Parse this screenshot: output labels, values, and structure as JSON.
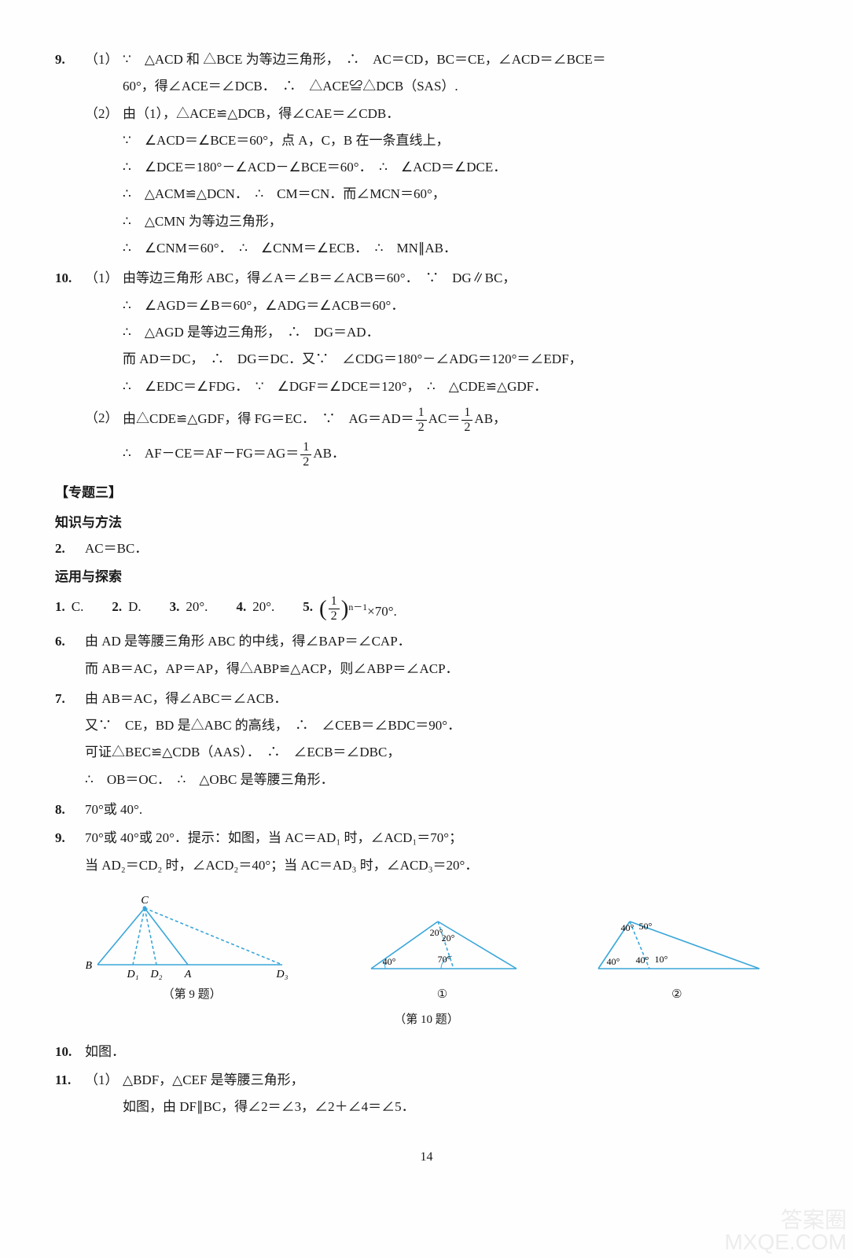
{
  "q9": {
    "num": "9.",
    "p1": {
      "label": "（1）",
      "l1": "∵　△ACD 和 △BCE 为等边三角形，　∴　AC＝CD，BC＝CE，∠ACD＝∠BCE＝",
      "l2": "60°，得∠ACE＝∠DCB．　∴　△ACE≌△DCB（SAS）."
    },
    "p2": {
      "label": "（2）",
      "l1": "由（1），△ACE≌△DCB，得∠CAE＝∠CDB．",
      "l2": "∵　∠ACD＝∠BCE＝60°，点 A，C，B 在一条直线上，",
      "l3": "∴　∠DCE＝180°－∠ACD－∠BCE＝60°．　∴　∠ACD＝∠DCE．",
      "l4": "∴　△ACM≌△DCN．　∴　CM＝CN．而∠MCN＝60°，",
      "l5": "∴　△CMN 为等边三角形，",
      "l6": "∴　∠CNM＝60°．　∴　∠CNM＝∠ECB．　∴　MN∥AB．"
    }
  },
  "q10": {
    "num": "10.",
    "p1": {
      "label": "（1）",
      "l1": "由等边三角形 ABC，得∠A＝∠B＝∠ACB＝60°．　∵　DG∥BC，",
      "l2": "∴　∠AGD＝∠B＝60°，∠ADG＝∠ACB＝60°．",
      "l3": "∴　△AGD 是等边三角形，　∴　DG＝AD．",
      "l4": "而 AD＝DC，　∴　DG＝DC．又∵　∠CDG＝180°－∠ADG＝120°＝∠EDF，",
      "l5": "∴　∠EDC＝∠FDG．　∵　∠DGF＝∠DCE＝120°，　∴　△CDE≌△GDF．"
    },
    "p2": {
      "label": "（2）",
      "l1_a": "由△CDE≌△GDF，得 FG＝EC．　∵　AG＝AD＝",
      "l1_b": "AC＝",
      "l1_c": "AB，",
      "l2_a": "∴　AF－CE＝AF－FG＝AG＝",
      "l2_b": "AB．"
    }
  },
  "sec3_title": "【专题三】",
  "kf_title": "知识与方法",
  "kf2": {
    "num": "2.",
    "text": "AC＝BC．"
  },
  "yy_title": "运用与探索",
  "ans": {
    "a1": {
      "n": "1.",
      "t": "C."
    },
    "a2": {
      "n": "2.",
      "t": "D."
    },
    "a3": {
      "n": "3.",
      "t": "20°."
    },
    "a4": {
      "n": "4.",
      "t": "20°."
    },
    "a5": {
      "n": "5.",
      "tail": "×70°."
    }
  },
  "q6": {
    "num": "6.",
    "l1": "由 AD 是等腰三角形 ABC 的中线，得∠BAP＝∠CAP．",
    "l2": "而 AB＝AC，AP＝AP，得△ABP≌△ACP，则∠ABP＝∠ACP．"
  },
  "q7": {
    "num": "7.",
    "l1": "由 AB＝AC，得∠ABC＝∠ACB．",
    "l2": "又∵　CE，BD 是△ABC 的高线，　∴　∠CEB＝∠BDC＝90°．",
    "l3": "可证△BEC≌△CDB（AAS）．　∴　∠ECB＝∠DBC，",
    "l4": "∴　OB＝OC．　∴　△OBC 是等腰三角形．"
  },
  "q8": {
    "num": "8.",
    "text": "70°或 40°."
  },
  "q9b": {
    "num": "9.",
    "l1": "70°或 40°或 20°．提示：如图，当 AC＝AD₁ 时，∠ACD₁＝70°；",
    "l2": "当 AD₂＝CD₂ 时，∠ACD₂＝40°；当 AC＝AD₃ 时，∠ACD₃＝20°．"
  },
  "fig9": {
    "caption": "（第 9 题）",
    "stroke_solid": "#3aa6d9",
    "stroke_dash": "#3aa6d9",
    "labels": {
      "B": "B",
      "C": "C",
      "A": "A",
      "D1": "D₁",
      "D2": "D₂",
      "D3": "D₃"
    }
  },
  "fig10": {
    "caption": "（第 10 题）",
    "stroke": "#3aa6d9",
    "t1": {
      "circ": "①",
      "a40": "40°",
      "a70": "70°",
      "a20": "20°"
    },
    "t2": {
      "circ": "②",
      "a40l": "40°",
      "a40r": "40°",
      "a10": "10°",
      "a50": "50°",
      "a40t": "40°"
    }
  },
  "q10b": {
    "num": "10.",
    "text": "如图．"
  },
  "q11": {
    "num": "11.",
    "p1": {
      "label": "（1）",
      "l1": "△BDF，△CEF 是等腰三角形，",
      "l2": "如图，由 DF∥BC，得∠2＝∠3，∠2＋∠4＝∠5．"
    }
  },
  "page": "14",
  "wm1": "答案圈",
  "wm2": "MXQE.COM"
}
